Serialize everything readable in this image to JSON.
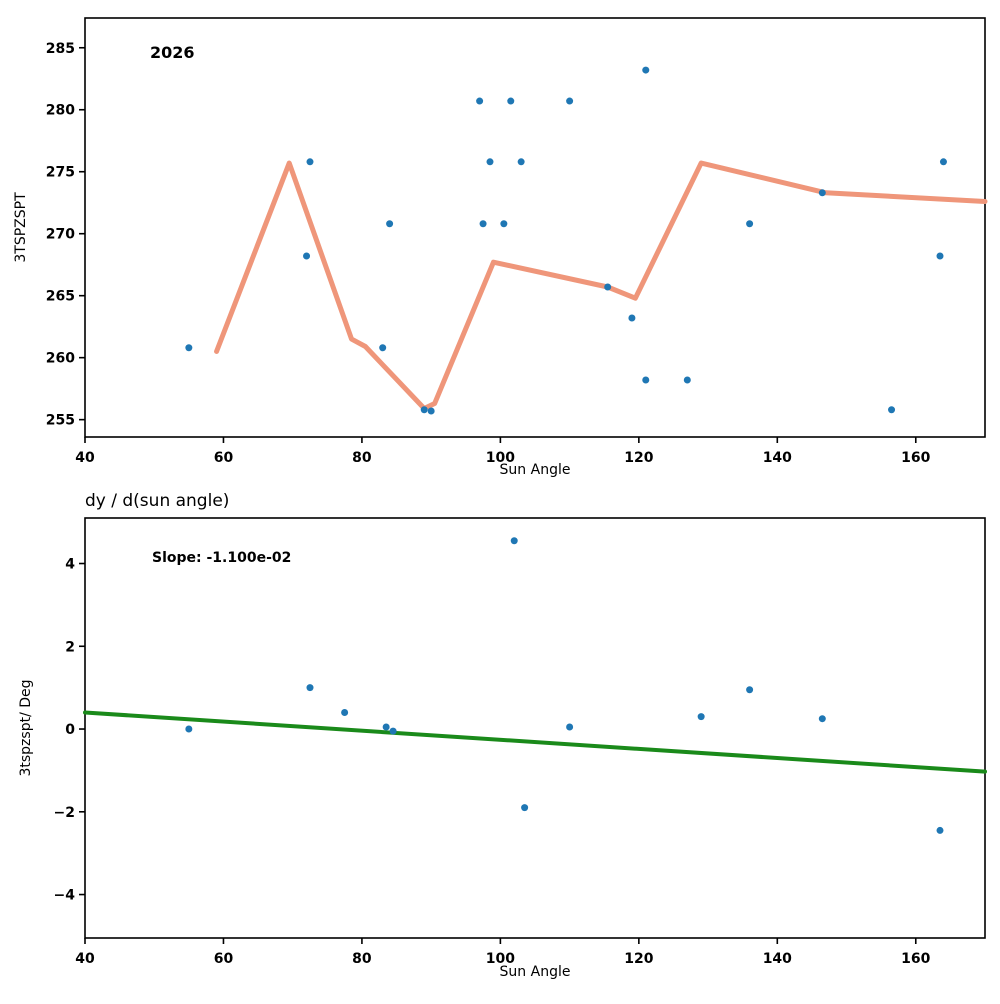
{
  "figure": {
    "background": "#ffffff"
  },
  "chart_data": [
    {
      "type": "scatter",
      "title": "",
      "annotation": "2026",
      "xlabel": "Sun Angle",
      "ylabel": "3TSPZSPT",
      "xlim": [
        40,
        170
      ],
      "ylim": [
        253.6,
        287.4
      ],
      "xticks": [
        40,
        60,
        80,
        100,
        120,
        140,
        160
      ],
      "yticks": [
        255,
        260,
        265,
        270,
        275,
        280,
        285
      ],
      "grid": false,
      "legend": "none",
      "scatter": {
        "name": "tspzspt-points",
        "color": "#1f77b4",
        "points": [
          [
            55,
            260.8
          ],
          [
            72,
            268.2
          ],
          [
            72.5,
            275.8
          ],
          [
            83,
            260.8
          ],
          [
            84,
            270.8
          ],
          [
            89,
            255.8
          ],
          [
            90,
            255.7
          ],
          [
            97,
            280.7
          ],
          [
            97.5,
            270.8
          ],
          [
            98.5,
            275.8
          ],
          [
            100.5,
            270.8
          ],
          [
            101.5,
            280.7
          ],
          [
            103,
            275.8
          ],
          [
            110,
            280.7
          ],
          [
            115.5,
            265.7
          ],
          [
            119,
            263.2
          ],
          [
            121,
            283.2
          ],
          [
            121,
            258.2
          ],
          [
            127,
            258.2
          ],
          [
            136,
            270.8
          ],
          [
            146.5,
            273.3
          ],
          [
            156.5,
            255.8
          ],
          [
            163.5,
            268.2
          ],
          [
            164,
            275.8
          ]
        ]
      },
      "lines": [
        {
          "name": "smoothed-trend",
          "color": "#ef967a",
          "width": 5,
          "points": [
            [
              59,
              260.5
            ],
            [
              69.5,
              275.7
            ],
            [
              78.5,
              261.5
            ],
            [
              80.5,
              260.9
            ],
            [
              89,
              255.9
            ],
            [
              90.5,
              256.3
            ],
            [
              99,
              267.7
            ],
            [
              115.5,
              265.7
            ],
            [
              119.5,
              264.8
            ],
            [
              129,
              275.7
            ],
            [
              147,
              273.3
            ],
            [
              170,
              272.6
            ]
          ]
        }
      ]
    },
    {
      "type": "scatter",
      "title": "dy / d(sun angle)",
      "annotation": "Slope: -1.100e-02",
      "xlabel": "Sun Angle",
      "ylabel": "3tspzspt/ Deg",
      "xlim": [
        40,
        170
      ],
      "ylim": [
        -5.05,
        5.1
      ],
      "xticks": [
        40,
        60,
        80,
        100,
        120,
        140,
        160
      ],
      "yticks": [
        -4,
        -2,
        0,
        2,
        4
      ],
      "grid": false,
      "legend": "none",
      "scatter": {
        "name": "derivative-points",
        "color": "#1f77b4",
        "points": [
          [
            55,
            0.0
          ],
          [
            72.5,
            1.0
          ],
          [
            77.5,
            0.4
          ],
          [
            83.5,
            0.05
          ],
          [
            84.5,
            -0.05
          ],
          [
            102,
            4.55
          ],
          [
            103.5,
            -1.9
          ],
          [
            110,
            0.05
          ],
          [
            129,
            0.3
          ],
          [
            136,
            0.95
          ],
          [
            146.5,
            0.25
          ],
          [
            163.5,
            -2.45
          ]
        ]
      },
      "lines": [
        {
          "name": "slope-fit-line",
          "color": "#1a8a1a",
          "width": 4,
          "points": [
            [
              40,
              0.4
            ],
            [
              170,
              -1.03
            ]
          ]
        }
      ]
    }
  ]
}
